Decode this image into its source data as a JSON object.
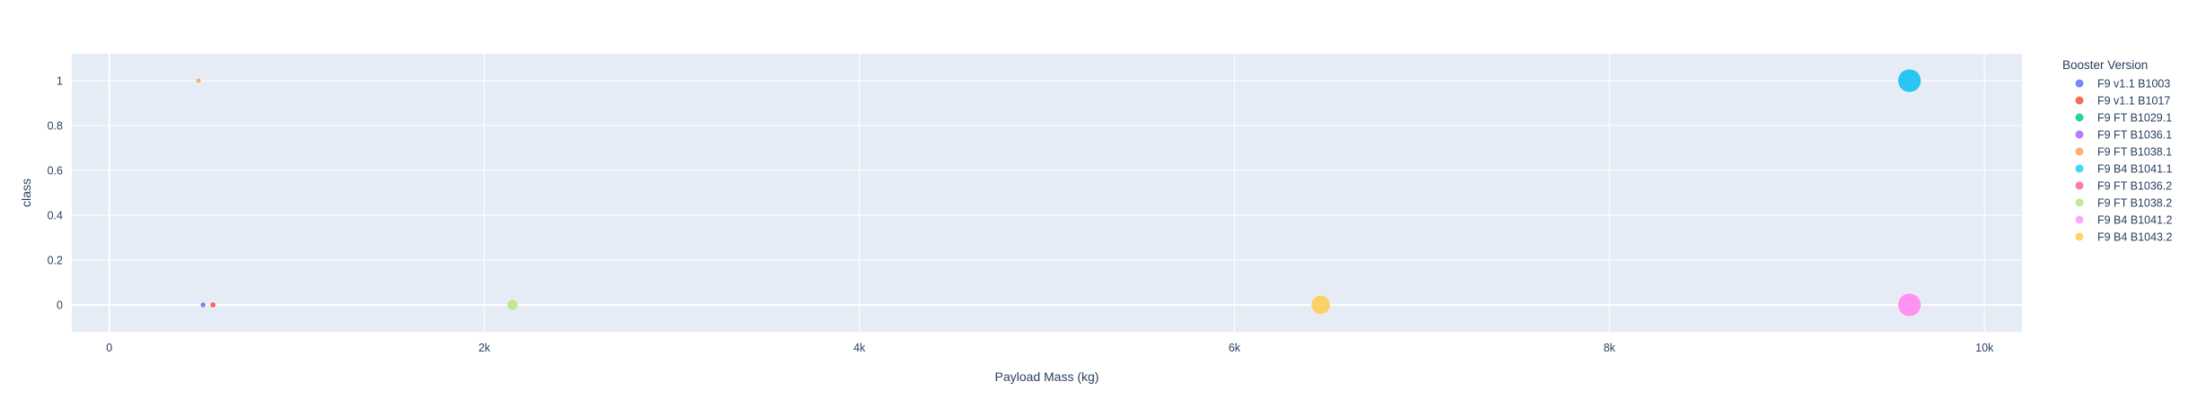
{
  "chart_data": {
    "type": "scatter",
    "xlabel": "Payload Mass (kg)",
    "ylabel": "class",
    "xlim": [
      -200,
      10200
    ],
    "ylim": [
      -0.12,
      1.12
    ],
    "xticks": [
      {
        "value": 0,
        "label": "0"
      },
      {
        "value": 2000,
        "label": "2k"
      },
      {
        "value": 4000,
        "label": "4k"
      },
      {
        "value": 6000,
        "label": "6k"
      },
      {
        "value": 8000,
        "label": "8k"
      },
      {
        "value": 10000,
        "label": "10k"
      }
    ],
    "yticks": [
      {
        "value": 0,
        "label": "0"
      },
      {
        "value": 0.2,
        "label": "0.2"
      },
      {
        "value": 0.4,
        "label": "0.4"
      },
      {
        "value": 0.6,
        "label": "0.6"
      },
      {
        "value": 0.8,
        "label": "0.8"
      },
      {
        "value": 1,
        "label": "1"
      }
    ],
    "grid": true,
    "plot_background": "#E5ECF6",
    "legend_title": "Booster Version",
    "legend_position": "right",
    "series": [
      {
        "name": "F9 v1.1  B1003",
        "color": "#636EFA",
        "points": [
          {
            "x": 500,
            "y": 0,
            "size": 500
          }
        ]
      },
      {
        "name": "F9 v1.1 B1017",
        "color": "#EF553B",
        "points": [
          {
            "x": 553,
            "y": 0,
            "size": 553
          }
        ]
      },
      {
        "name": "F9 FT B1029.1",
        "color": "#00CC96",
        "points": [
          {
            "x": 9600,
            "y": 1,
            "size": 9600
          }
        ]
      },
      {
        "name": "F9 FT B1036.1",
        "color": "#AB63FA",
        "points": [
          {
            "x": 9600,
            "y": 1,
            "size": 9600
          }
        ]
      },
      {
        "name": "F9 FT B1038.1",
        "color": "#FFA15A",
        "points": [
          {
            "x": 475,
            "y": 1,
            "size": 475
          }
        ]
      },
      {
        "name": "F9 B4 B1041.1",
        "color": "#19D3F3",
        "points": [
          {
            "x": 9600,
            "y": 1,
            "size": 9600
          }
        ]
      },
      {
        "name": "F9 FT  B1036.2",
        "color": "#FF6692",
        "points": [
          {
            "x": 9600,
            "y": 0,
            "size": 9600
          }
        ]
      },
      {
        "name": "F9 FT  B1038.2",
        "color": "#B6E880",
        "points": [
          {
            "x": 2150,
            "y": 0,
            "size": 2150
          }
        ]
      },
      {
        "name": "F9 B4  B1041.2",
        "color": "#FF97FF",
        "points": [
          {
            "x": 9600,
            "y": 0,
            "size": 9600
          }
        ]
      },
      {
        "name": "F9 B4  B1043.2",
        "color": "#FECB52",
        "points": [
          {
            "x": 6460,
            "y": 0,
            "size": 6460
          }
        ]
      }
    ]
  }
}
